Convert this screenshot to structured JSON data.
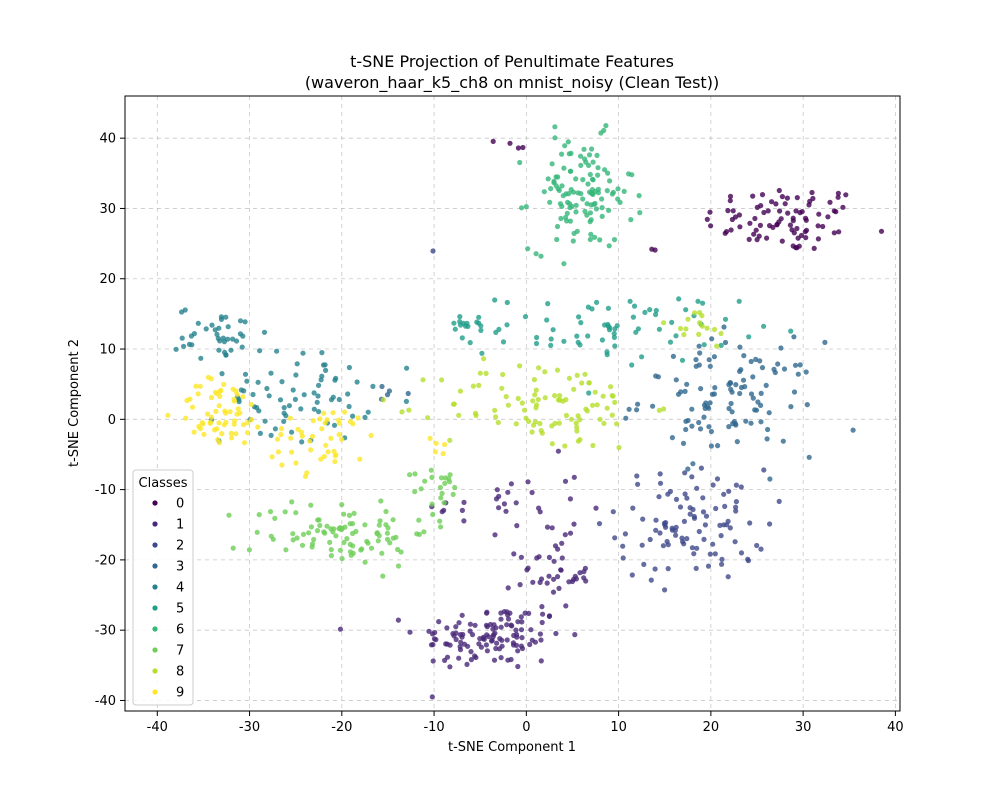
{
  "chart_data": {
    "type": "scatter",
    "title": "t-SNE Projection of Penultimate Features",
    "subtitle": "(waveron_haar_k5_ch8 on mnist_noisy (Clean Test))",
    "xlabel": "t-SNE Component 1",
    "ylabel": "t-SNE Component 2",
    "xlim": [
      -43.5,
      40.5
    ],
    "ylim": [
      -41.5,
      46
    ],
    "xticks": [
      -40,
      -30,
      -20,
      -10,
      0,
      10,
      20,
      30,
      40
    ],
    "yticks": [
      -40,
      -30,
      -20,
      -10,
      0,
      10,
      20,
      30,
      40
    ],
    "grid": true,
    "legend": {
      "title": "Classes",
      "placement": "lower-left",
      "entries": [
        "0",
        "1",
        "2",
        "3",
        "4",
        "5",
        "6",
        "7",
        "8",
        "9"
      ]
    },
    "series": [
      {
        "name": "0",
        "color": "#440154",
        "clusters": [
          {
            "center": [
              28,
              28.5
            ],
            "spread": [
              5.5,
              3
            ],
            "n": 85
          },
          {
            "center": [
              -0.5,
              39
            ],
            "spread": [
              1.5,
              0.6
            ],
            "n": 4
          },
          {
            "center": [
              13.5,
              24
            ],
            "spread": [
              0.4,
              0.3
            ],
            "n": 2
          }
        ]
      },
      {
        "name": "1",
        "color": "#482878",
        "clusters": [
          {
            "center": [
              -4,
              -31
            ],
            "spread": [
              5,
              3
            ],
            "n": 120
          },
          {
            "center": [
              3,
              -22
            ],
            "spread": [
              2.5,
              3
            ],
            "n": 40
          },
          {
            "center": [
              -2,
              -12
            ],
            "spread": [
              5,
              4
            ],
            "n": 30
          }
        ]
      },
      {
        "name": "2",
        "color": "#3e4989",
        "clusters": [
          {
            "center": [
              18,
              -15
            ],
            "spread": [
              5,
              5
            ],
            "n": 100
          },
          {
            "center": [
              -10,
              24
            ],
            "spread": [
              0.2,
              0.2
            ],
            "n": 1
          }
        ]
      },
      {
        "name": "3",
        "color": "#31688e",
        "clusters": [
          {
            "center": [
              22,
              3
            ],
            "spread": [
              6,
              5
            ],
            "n": 110
          },
          {
            "center": [
              -14,
              3
            ],
            "spread": [
              2,
              1.5
            ],
            "n": 5
          }
        ]
      },
      {
        "name": "4",
        "color": "#26828e",
        "clusters": [
          {
            "center": [
              -33,
              12
            ],
            "spread": [
              3,
              2.5
            ],
            "n": 40
          },
          {
            "center": [
              -25,
              3
            ],
            "spread": [
              5,
              4
            ],
            "n": 70
          }
        ]
      },
      {
        "name": "5",
        "color": "#1f9e89",
        "clusters": [
          {
            "center": [
              10,
              13
            ],
            "spread": [
              8,
              3
            ],
            "n": 70
          },
          {
            "center": [
              -7,
              13
            ],
            "spread": [
              2,
              1.5
            ],
            "n": 15
          }
        ]
      },
      {
        "name": "6",
        "color": "#35b779",
        "clusters": [
          {
            "center": [
              6,
              32
            ],
            "spread": [
              3.5,
              5
            ],
            "n": 120
          }
        ]
      },
      {
        "name": "7",
        "color": "#6ece58",
        "clusters": [
          {
            "center": [
              -20,
              -16
            ],
            "spread": [
              6,
              3
            ],
            "n": 95
          },
          {
            "center": [
              -9,
              -10
            ],
            "spread": [
              2,
              2
            ],
            "n": 20
          }
        ]
      },
      {
        "name": "8",
        "color": "#b5de2b",
        "clusters": [
          {
            "center": [
              2,
              2
            ],
            "spread": [
              7,
              4
            ],
            "n": 95
          },
          {
            "center": [
              18,
              13
            ],
            "spread": [
              3,
              2
            ],
            "n": 15
          }
        ]
      },
      {
        "name": "9",
        "color": "#fde725",
        "clusters": [
          {
            "center": [
              -33,
              1
            ],
            "spread": [
              3,
              3
            ],
            "n": 60
          },
          {
            "center": [
              -22,
              -3
            ],
            "spread": [
              4,
              3
            ],
            "n": 45
          },
          {
            "center": [
              -10,
              -3
            ],
            "spread": [
              1.5,
              1.5
            ],
            "n": 5
          }
        ]
      }
    ]
  }
}
